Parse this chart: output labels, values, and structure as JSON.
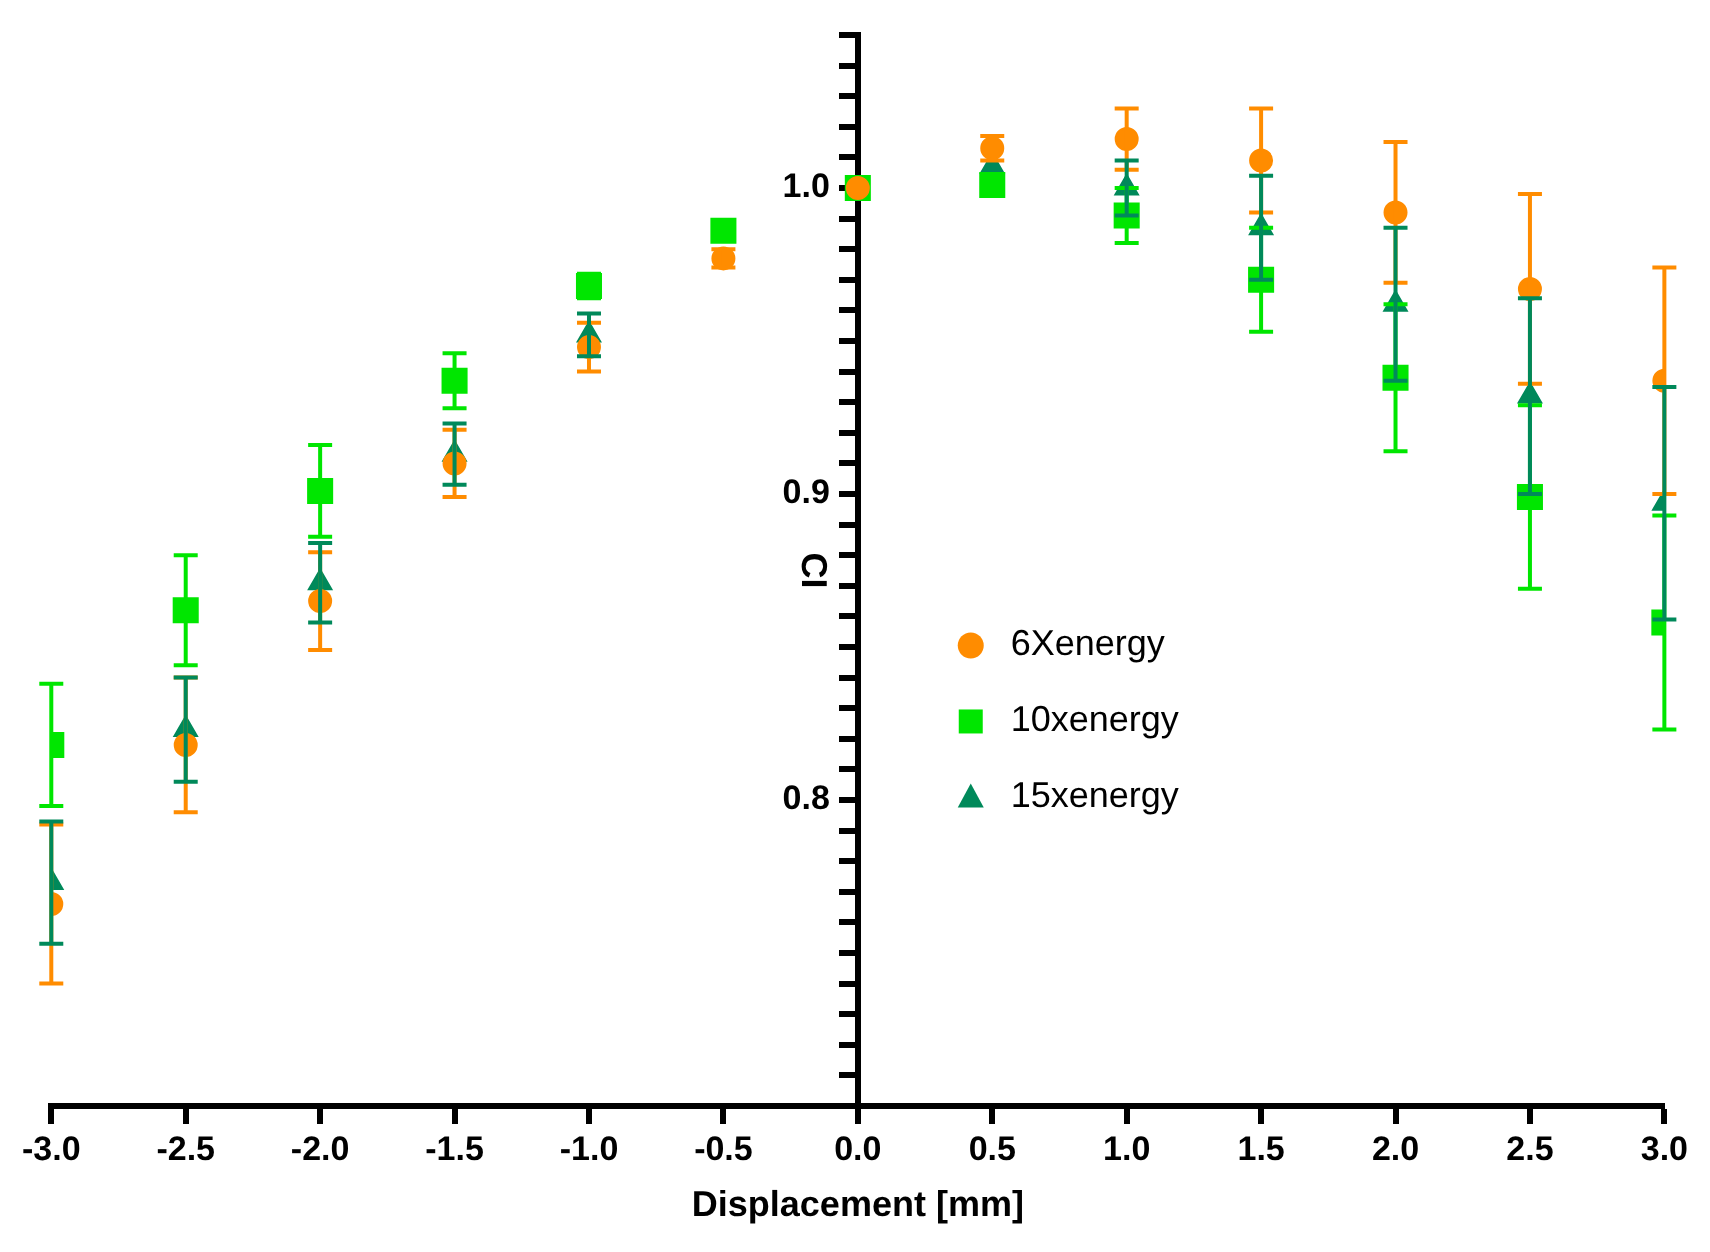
{
  "chart_data": {
    "type": "scatter",
    "xlabel": "Displacement [mm]",
    "ylabel": "CI",
    "x": [
      -3.0,
      -2.5,
      -2.0,
      -1.5,
      -1.0,
      -0.5,
      0.0,
      0.5,
      1.0,
      1.5,
      2.0,
      2.5,
      3.0
    ],
    "series": [
      {
        "name": "6Xenergy",
        "color": "#ff8c00",
        "marker": "circle",
        "values": [
          0.766,
          0.818,
          0.865,
          0.91,
          0.948,
          0.977,
          1.0,
          1.013,
          1.016,
          1.009,
          0.992,
          0.967,
          0.937
        ],
        "errors": [
          0.026,
          0.022,
          0.016,
          0.011,
          0.008,
          0.003,
          null,
          0.004,
          0.01,
          0.017,
          0.023,
          0.031,
          0.037
        ]
      },
      {
        "name": "10xenergy",
        "color": "#00e600",
        "marker": "square",
        "values": [
          0.818,
          0.862,
          0.901,
          0.937,
          0.968,
          0.986,
          1.0,
          1.001,
          0.991,
          0.97,
          0.938,
          0.899,
          0.858
        ],
        "errors": [
          0.02,
          0.018,
          0.015,
          0.009,
          0.004,
          null,
          null,
          null,
          0.009,
          0.017,
          0.024,
          0.03,
          0.035
        ]
      },
      {
        "name": "15xenergy",
        "color": "#00895a",
        "marker": "triangle",
        "values": [
          0.773,
          0.823,
          0.871,
          0.913,
          0.952,
          null,
          null,
          1.007,
          1.0,
          0.987,
          0.962,
          0.932,
          0.897
        ],
        "errors": [
          0.02,
          0.017,
          0.013,
          0.01,
          0.007,
          null,
          null,
          null,
          0.009,
          0.017,
          0.025,
          0.032,
          0.038
        ]
      }
    ],
    "xlim": [
      -3.0,
      3.0
    ],
    "xticks": [
      {
        "value": -3.0,
        "label": "-3.0"
      },
      {
        "value": -2.5,
        "label": "-2.5"
      },
      {
        "value": -2.0,
        "label": "-2.0"
      },
      {
        "value": -1.5,
        "label": "-1.5"
      },
      {
        "value": -1.0,
        "label": "-1.0"
      },
      {
        "value": -0.5,
        "label": "-0.5"
      },
      {
        "value": 0.0,
        "label": "0.0"
      },
      {
        "value": 0.5,
        "label": "0.5"
      },
      {
        "value": 1.0,
        "label": "1.0"
      },
      {
        "value": 1.5,
        "label": "1.5"
      },
      {
        "value": 2.0,
        "label": "2.0"
      },
      {
        "value": 2.5,
        "label": "2.5"
      },
      {
        "value": 3.0,
        "label": "3.0"
      }
    ],
    "ylim": [
      0.7,
      1.05
    ],
    "yticks": [
      {
        "value": 0.71,
        "label": null
      },
      {
        "value": 0.72,
        "label": null
      },
      {
        "value": 0.73,
        "label": null
      },
      {
        "value": 0.74,
        "label": null
      },
      {
        "value": 0.75,
        "label": null
      },
      {
        "value": 0.76,
        "label": null
      },
      {
        "value": 0.77,
        "label": null
      },
      {
        "value": 0.78,
        "label": null
      },
      {
        "value": 0.79,
        "label": null
      },
      0.8,
      {
        "value": 0.81,
        "label": null
      },
      {
        "value": 0.82,
        "label": null
      },
      {
        "value": 0.83,
        "label": null
      },
      {
        "value": 0.84,
        "label": null
      },
      {
        "value": 0.85,
        "label": null
      },
      {
        "value": 0.86,
        "label": null
      },
      {
        "value": 0.87,
        "label": null
      },
      {
        "value": 0.88,
        "label": null
      },
      {
        "value": 0.89,
        "label": null
      },
      0.9,
      {
        "value": 0.91,
        "label": null
      },
      {
        "value": 0.92,
        "label": null
      },
      {
        "value": 0.93,
        "label": null
      },
      {
        "value": 0.94,
        "label": null
      },
      {
        "value": 0.95,
        "label": null
      },
      {
        "value": 0.96,
        "label": null
      },
      {
        "value": 0.97,
        "label": null
      },
      {
        "value": 0.98,
        "label": null
      },
      {
        "value": 0.99,
        "label": null
      },
      {
        "value": 1.0,
        "label": "1.0"
      },
      {
        "value": 1.01,
        "label": null
      },
      {
        "value": 1.02,
        "label": null
      },
      {
        "value": 1.03,
        "label": null
      },
      {
        "value": 1.04,
        "label": null
      },
      {
        "value": 1.05,
        "label": null
      }
    ],
    "grid": false,
    "legend": "center"
  }
}
